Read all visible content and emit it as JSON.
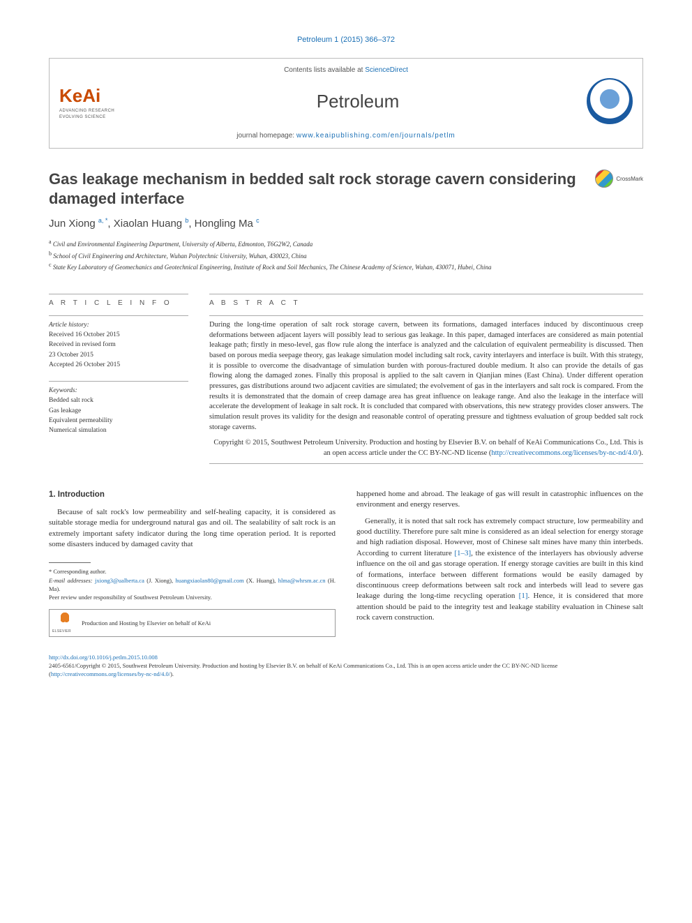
{
  "running_head": "Petroleum 1 (2015) 366–372",
  "masthead": {
    "contents_line_pre": "Contents lists available at ",
    "contents_link": "ScienceDirect",
    "journal_name": "Petroleum",
    "homepage_pre": "journal homepage: ",
    "homepage_url": "www.keaipublishing.com/en/journals/petlm",
    "keai_brand": "KeAi",
    "keai_tag1": "ADVANCING RESEARCH",
    "keai_tag2": "EVOLVING SCIENCE"
  },
  "article": {
    "title": "Gas leakage mechanism in bedded salt rock storage cavern considering damaged interface",
    "crossmark": "CrossMark",
    "authors_html": "Jun Xiong <sup>a, *</sup>, Xiaolan Huang <sup>b</sup>, Hongling Ma <sup>c</sup>",
    "affiliations": [
      {
        "sup": "a",
        "text": "Civil and Environmental Engineering Department, University of Alberta, Edmonton, T6G2W2, Canada"
      },
      {
        "sup": "b",
        "text": "School of Civil Engineering and Architecture, Wuhan Polytechnic University, Wuhan, 430023, China"
      },
      {
        "sup": "c",
        "text": "State Key Laboratory of Geomechanics and Geotechnical Engineering, Institute of Rock and Soil Mechanics, The Chinese Academy of Science, Wuhan, 430071, Hubei, China"
      }
    ]
  },
  "info": {
    "heading": "A R T I C L E   I N F O",
    "history_label": "Article history:",
    "history": [
      "Received 16 October 2015",
      "Received in revised form",
      "23 October 2015",
      "Accepted 26 October 2015"
    ],
    "keywords_label": "Keywords:",
    "keywords": [
      "Bedded salt rock",
      "Gas leakage",
      "Equivalent permeability",
      "Numerical simulation"
    ]
  },
  "abstract": {
    "heading": "A B S T R A C T",
    "text": "During the long-time operation of salt rock storage cavern, between its formations, damaged interfaces induced by discontinuous creep deformations between adjacent layers will possibly lead to serious gas leakage. In this paper, damaged interfaces are considered as main potential leakage path; firstly in meso-level, gas flow rule along the interface is analyzed and the calculation of equivalent permeability is discussed. Then based on porous media seepage theory, gas leakage simulation model including salt rock, cavity interlayers and interface is built. With this strategy, it is possible to overcome the disadvantage of simulation burden with porous-fractured double medium. It also can provide the details of gas flowing along the damaged zones. Finally this proposal is applied to the salt cavern in Qianjian mines (East China). Under different operation pressures, gas distributions around two adjacent cavities are simulated; the evolvement of gas in the interlayers and salt rock is compared. From the results it is demonstrated that the domain of creep damage area has great influence on leakage range. And also the leakage in the interface will accelerate the development of leakage in salt rock. It is concluded that compared with observations, this new strategy provides closer answers. The simulation result proves its validity for the design and reasonable control of operating pressure and tightness evaluation of group bedded salt rock storage caverns.",
    "copyright": "Copyright © 2015, Southwest Petroleum University. Production and hosting by Elsevier B.V. on behalf of KeAi Communications Co., Ltd. This is an open access article under the CC BY-NC-ND license (",
    "cc_link": "http://creativecommons.org/licenses/by-nc-nd/4.0/",
    "copyright_tail": ")."
  },
  "body": {
    "heading": "1. Introduction",
    "left_p1": "Because of salt rock's low permeability and self-healing capacity, it is considered as suitable storage media for underground natural gas and oil. The sealability of salt rock is an extremely important safety indicator during the long time operation period. It is reported some disasters induced by damaged cavity that",
    "right_p1": "happened home and abroad. The leakage of gas will result in catastrophic influences on the environment and energy reserves.",
    "right_p2_a": "Generally, it is noted that salt rock has extremely compact structure, low permeability and good ductility. Therefore pure salt mine is considered as an ideal selection for energy storage and high radiation disposal. However, most of Chinese salt mines have many thin interbeds. According to current literature ",
    "right_ref1": "[1–3]",
    "right_p2_b": ", the existence of the interlayers has obviously adverse influence on the oil and gas storage operation. If energy storage cavities are built in this kind of formations, interface between different formations would be easily damaged by discontinuous creep deformations between salt rock and interbeds will lead to severe gas leakage during the long-time recycling operation ",
    "right_ref2": "[1]",
    "right_p2_c": ". Hence, it is considered that more attention should be paid to the integrity test and leakage stability evaluation in Chinese salt rock cavern construction."
  },
  "footnotes": {
    "corresponding": "* Corresponding author.",
    "email_label": "E-mail addresses:",
    "emails": [
      {
        "addr": "jxiong3@ualberta.ca",
        "who": "(J. Xiong),"
      },
      {
        "addr": "huangxiaolan80@gmail.com",
        "who": "(X. Huang),"
      },
      {
        "addr": "hlma@whrsm.ac.cn",
        "who": "(H. Ma)."
      }
    ],
    "peer_review": "Peer review under responsibility of Southwest Petroleum University.",
    "hosting": "Production and Hosting by Elsevier on behalf of KeAi"
  },
  "footer": {
    "doi": "http://dx.doi.org/10.1016/j.petlm.2015.10.008",
    "line2_a": "2405-6561/Copyright © 2015, Southwest Petroleum University. Production and hosting by Elsevier B.V. on behalf of KeAi Communications Co., Ltd. This is an open access article under the CC BY-NC-ND license (",
    "cc_link": "http://creativecommons.org/licenses/by-nc-nd/4.0/",
    "line2_b": ")."
  },
  "colors": {
    "link": "#1a6fb5",
    "keai": "#c94a00"
  }
}
